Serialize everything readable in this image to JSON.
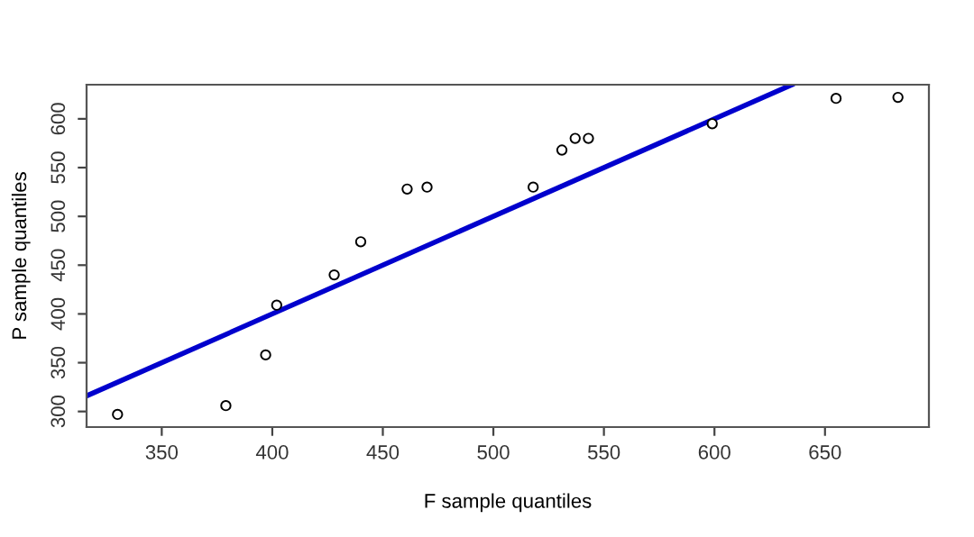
{
  "chart_data": {
    "type": "scatter",
    "xlabel": "F sample quantiles",
    "ylabel": "P sample quantiles",
    "xlim": [
      316,
      697
    ],
    "ylim": [
      284,
      635
    ],
    "xticks": [
      350,
      400,
      450,
      500,
      550,
      600,
      650
    ],
    "yticks": [
      300,
      350,
      400,
      450,
      500,
      550,
      600
    ],
    "grid": false,
    "series": [
      {
        "marker": "circle",
        "color": "#000000",
        "x": [
          330,
          379,
          397,
          402,
          428,
          440,
          461,
          470,
          518,
          531,
          537,
          543,
          599,
          655,
          683
        ],
        "values": [
          297,
          306,
          358,
          409,
          440,
          474,
          528,
          530,
          530,
          568,
          580,
          580,
          595,
          621,
          622
        ]
      },
      {
        "type": "line",
        "color": "#0000cd",
        "line_style": "solid",
        "x": [
          316,
          635
        ],
        "values": [
          316,
          635
        ]
      }
    ]
  }
}
